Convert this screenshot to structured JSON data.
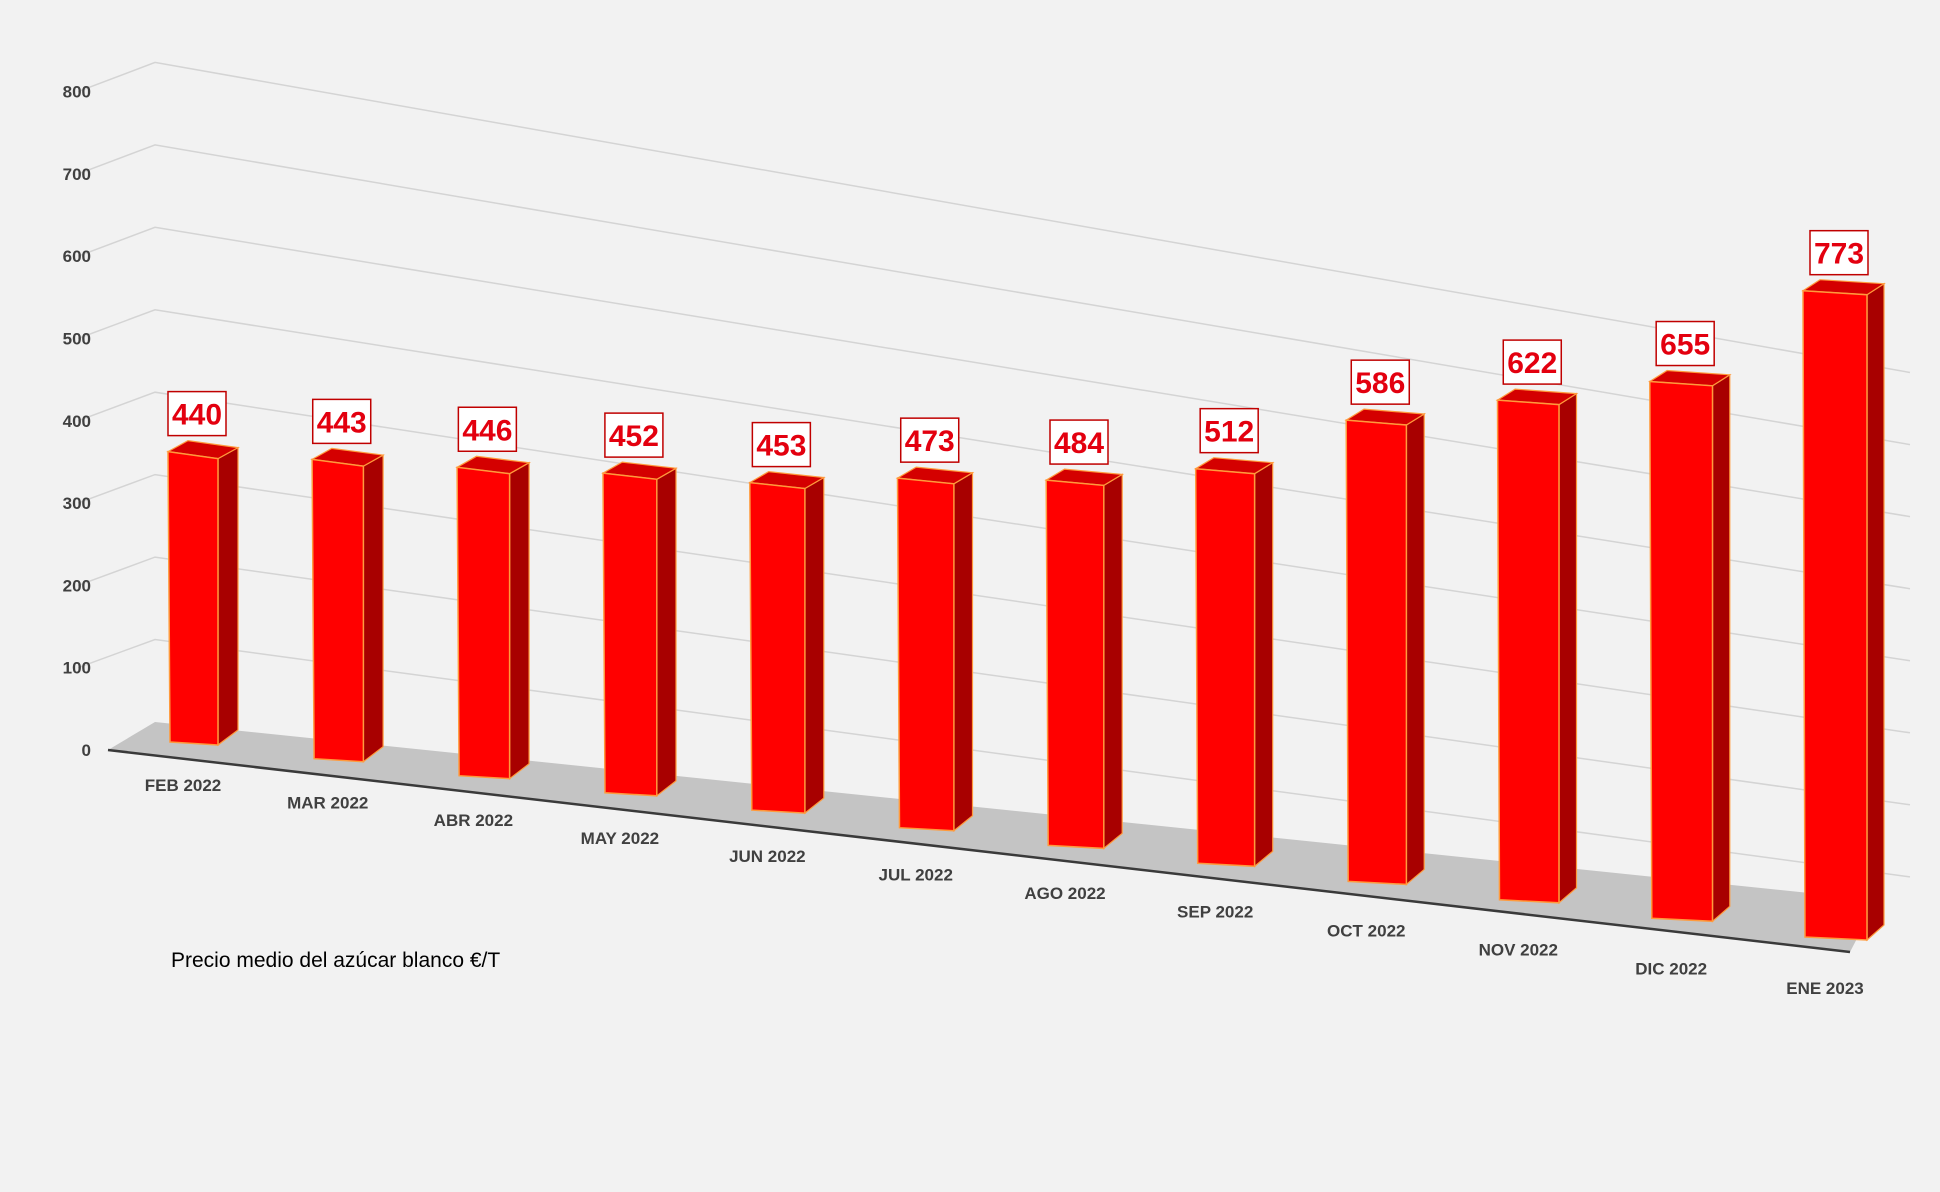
{
  "chart_data": {
    "type": "bar",
    "categories": [
      "FEB 2022",
      "MAR 2022",
      "ABR 2022",
      "MAY 2022",
      "JUN 2022",
      "JUL 2022",
      "AGO 2022",
      "SEP 2022",
      "OCT 2022",
      "NOV 2022",
      "DIC 2022",
      "ENE 2023"
    ],
    "series": [
      {
        "name": "Precio medio del azúcar blanco €/T",
        "values": [
          440,
          443,
          446,
          452,
          453,
          473,
          484,
          512,
          586,
          622,
          655,
          773
        ]
      }
    ],
    "yticks": [
      "0",
      "100",
      "200",
      "300",
      "400",
      "500",
      "600",
      "700",
      "800"
    ],
    "ylim": [
      0,
      800
    ],
    "grid": true,
    "legend_position": "bottom-left",
    "style": "3d-column",
    "colors": {
      "bar_front": "#ff0000",
      "bar_side": "#a80000",
      "bar_top": "#d40000",
      "bar_edge": "#ff9a3c",
      "label_text": "#e3000f",
      "floor": "#c4c4c4",
      "grid": "#d4d4d4",
      "background": "#f2f2f2"
    }
  }
}
